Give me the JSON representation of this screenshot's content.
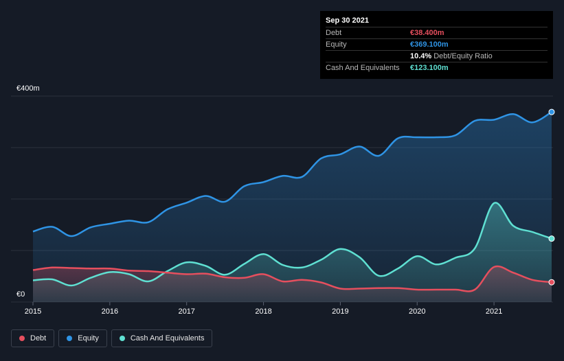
{
  "tooltip": {
    "date": "Sep 30 2021",
    "debt_label": "Debt",
    "debt_value": "€38.400m",
    "equity_label": "Equity",
    "equity_value": "€369.100m",
    "ratio_value": "10.4%",
    "ratio_label": "Debt/Equity Ratio",
    "cash_label": "Cash And Equivalents",
    "cash_value": "€123.100m"
  },
  "legend": {
    "debt": "Debt",
    "equity": "Equity",
    "cash": "Cash And Equivalents"
  },
  "colors": {
    "debt": "#e64f5e",
    "equity": "#2f94e5",
    "cash": "#5fe0d2",
    "background": "#151b26",
    "grid": "#2b313c"
  },
  "chart_data": {
    "type": "area",
    "ylim": [
      0,
      400
    ],
    "xlim": [
      2015,
      2021.75
    ],
    "y_ticks": [
      {
        "value": 400,
        "label": "€400m"
      },
      {
        "value": 0,
        "label": "€0"
      }
    ],
    "x_ticks": [
      {
        "value": 2015,
        "label": "2015"
      },
      {
        "value": 2016,
        "label": "2016"
      },
      {
        "value": 2017,
        "label": "2017"
      },
      {
        "value": 2018,
        "label": "2018"
      },
      {
        "value": 2019,
        "label": "2019"
      },
      {
        "value": 2020,
        "label": "2020"
      },
      {
        "value": 2021,
        "label": "2021"
      }
    ],
    "series": [
      {
        "name": "Equity",
        "color_key": "equity",
        "points": [
          [
            2015,
            137
          ],
          [
            2015.25,
            146
          ],
          [
            2015.5,
            128
          ],
          [
            2015.75,
            145
          ],
          [
            2016,
            152
          ],
          [
            2016.25,
            158
          ],
          [
            2016.5,
            155
          ],
          [
            2016.75,
            180
          ],
          [
            2017,
            193
          ],
          [
            2017.25,
            206
          ],
          [
            2017.5,
            195
          ],
          [
            2017.75,
            225
          ],
          [
            2018,
            233
          ],
          [
            2018.25,
            245
          ],
          [
            2018.5,
            243
          ],
          [
            2018.75,
            279
          ],
          [
            2019,
            287
          ],
          [
            2019.25,
            302
          ],
          [
            2019.5,
            284
          ],
          [
            2019.75,
            318
          ],
          [
            2020,
            320
          ],
          [
            2020.25,
            320
          ],
          [
            2020.5,
            324
          ],
          [
            2020.75,
            352
          ],
          [
            2021,
            354
          ],
          [
            2021.25,
            365
          ],
          [
            2021.5,
            349
          ],
          [
            2021.75,
            369.1
          ]
        ]
      },
      {
        "name": "Cash And Equivalents",
        "color_key": "cash",
        "points": [
          [
            2015,
            42
          ],
          [
            2015.25,
            44
          ],
          [
            2015.5,
            32
          ],
          [
            2015.75,
            47
          ],
          [
            2016,
            58
          ],
          [
            2016.25,
            54
          ],
          [
            2016.5,
            40
          ],
          [
            2016.75,
            60
          ],
          [
            2017,
            77
          ],
          [
            2017.25,
            70
          ],
          [
            2017.5,
            53
          ],
          [
            2017.75,
            74
          ],
          [
            2018,
            93
          ],
          [
            2018.25,
            72
          ],
          [
            2018.5,
            67
          ],
          [
            2018.75,
            82
          ],
          [
            2019,
            103
          ],
          [
            2019.25,
            87
          ],
          [
            2019.5,
            51
          ],
          [
            2019.75,
            65
          ],
          [
            2020,
            89
          ],
          [
            2020.25,
            73
          ],
          [
            2020.5,
            86
          ],
          [
            2020.75,
            104
          ],
          [
            2021,
            192
          ],
          [
            2021.25,
            148
          ],
          [
            2021.5,
            136
          ],
          [
            2021.75,
            123.1
          ]
        ]
      },
      {
        "name": "Debt",
        "color_key": "debt",
        "points": [
          [
            2015,
            62
          ],
          [
            2015.25,
            67
          ],
          [
            2015.5,
            66
          ],
          [
            2015.75,
            65
          ],
          [
            2016,
            65
          ],
          [
            2016.25,
            61
          ],
          [
            2016.5,
            60
          ],
          [
            2016.75,
            57
          ],
          [
            2017,
            54
          ],
          [
            2017.25,
            55
          ],
          [
            2017.5,
            48
          ],
          [
            2017.75,
            47
          ],
          [
            2018,
            54
          ],
          [
            2018.25,
            40
          ],
          [
            2018.5,
            43
          ],
          [
            2018.75,
            38
          ],
          [
            2019,
            26
          ],
          [
            2019.25,
            26
          ],
          [
            2019.5,
            27
          ],
          [
            2019.75,
            27
          ],
          [
            2020,
            24
          ],
          [
            2020.25,
            24
          ],
          [
            2020.5,
            24
          ],
          [
            2020.75,
            24
          ],
          [
            2021,
            68
          ],
          [
            2021.25,
            57
          ],
          [
            2021.5,
            43
          ],
          [
            2021.75,
            38.4
          ]
        ]
      }
    ]
  }
}
